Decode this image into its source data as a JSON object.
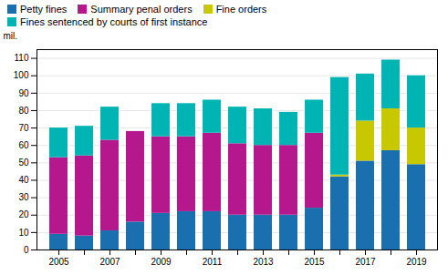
{
  "chart_data": {
    "type": "bar",
    "stacked": true,
    "ylabel": "mil.",
    "categories": [
      "2005",
      null,
      "2007",
      null,
      "2009",
      null,
      "2011",
      null,
      "2013",
      null,
      "2015",
      null,
      "2017",
      null,
      "2019"
    ],
    "series": [
      {
        "name": "Petty fines",
        "color": "#1a6faf",
        "values": [
          9,
          8,
          11,
          16,
          21,
          22,
          22,
          20,
          20,
          20,
          24,
          42,
          51,
          57,
          49
        ]
      },
      {
        "name": "Summary penal orders",
        "color": "#b5178c",
        "values": [
          44,
          46,
          52,
          52,
          44,
          43,
          45,
          41,
          40,
          40,
          43,
          0,
          0,
          0,
          0
        ]
      },
      {
        "name": "Fine orders",
        "color": "#c8c800",
        "values": [
          0,
          0,
          0,
          0,
          0,
          0,
          0,
          0,
          0,
          0,
          0,
          1,
          23,
          24,
          21
        ]
      },
      {
        "name": "Fines sentenced by courts of first instance",
        "color": "#00b4b4",
        "values": [
          17,
          17,
          19,
          0,
          19,
          19,
          19,
          21,
          21,
          19,
          19,
          56,
          27,
          28,
          30
        ]
      }
    ],
    "ylim": [
      0,
      115
    ],
    "yticks": [
      0,
      10,
      20,
      30,
      40,
      50,
      60,
      70,
      80,
      90,
      100,
      110
    ],
    "grid": true,
    "legend": "upper left"
  }
}
